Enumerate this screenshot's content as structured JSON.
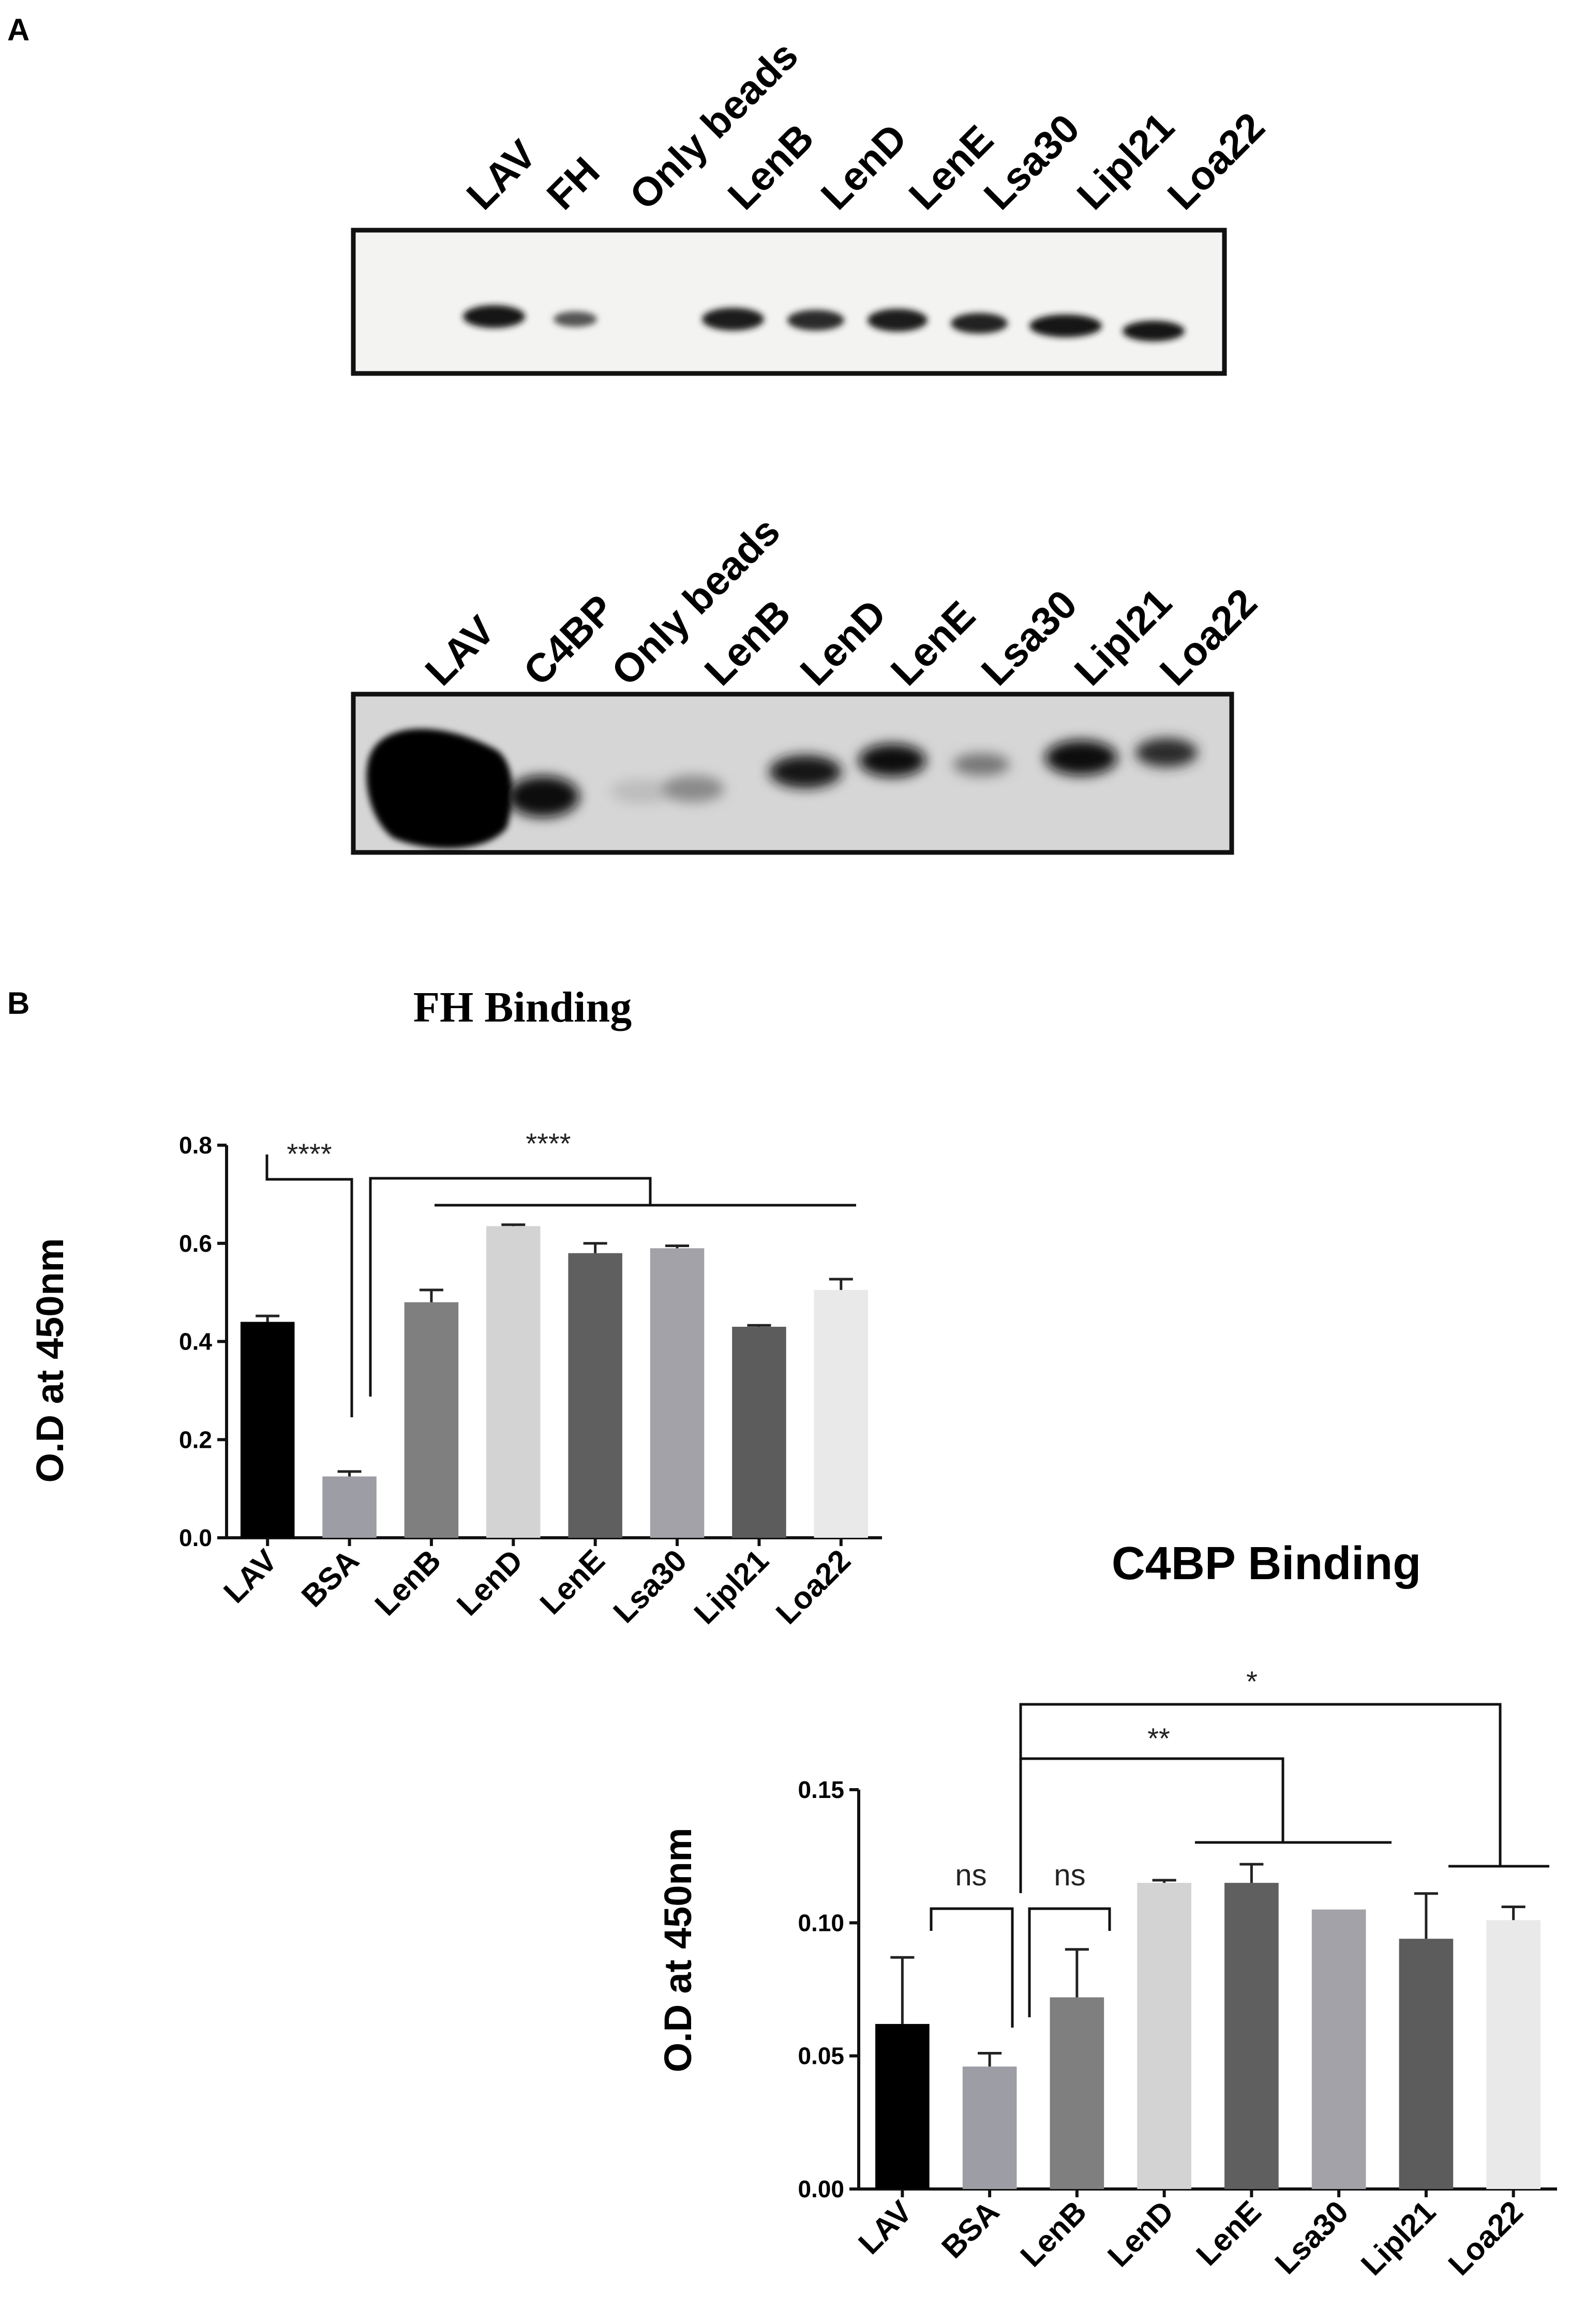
{
  "panel_a": {
    "letter": "A",
    "blot_top": {
      "lanes": [
        "LAV",
        "FH",
        "Only beads",
        "LenB",
        "LenD",
        "LenE",
        "Lsa30",
        "Lipl21",
        "Loa22"
      ]
    },
    "blot_bottom": {
      "lanes": [
        "LAV",
        "C4BP",
        "Only beads",
        "LenB",
        "LenD",
        "LenE",
        "Lsa30",
        "Lipl21",
        "Loa22"
      ]
    }
  },
  "panel_b": {
    "letter": "B"
  },
  "chart_data": [
    {
      "type": "bar",
      "title": "FH Binding",
      "ylabel": "O.D at 450nm",
      "xlabel": "",
      "categories": [
        "LAV",
        "BSA",
        "LenB",
        "LenD",
        "LenE",
        "Lsa30",
        "Lipl21",
        "Loa22"
      ],
      "values": [
        0.44,
        0.125,
        0.48,
        0.635,
        0.58,
        0.59,
        0.43,
        0.505
      ],
      "errors": [
        0.012,
        0.01,
        0.025,
        0.003,
        0.02,
        0.005,
        0.003,
        0.022
      ],
      "colors": [
        "#000000",
        "#9d9da5",
        "#7f7f7f",
        "#d3d3d3",
        "#5f5f5f",
        "#a2a2a8",
        "#5c5c5c",
        "#e9e9e9"
      ],
      "ylim": [
        0,
        0.8
      ],
      "yticks": [
        "0.0",
        "0.2",
        "0.4",
        "0.6",
        "0.8"
      ],
      "annotations": [
        "****",
        "****"
      ]
    },
    {
      "type": "bar",
      "title": "C4BP Binding",
      "ylabel": "O.D at 450nm",
      "xlabel": "",
      "categories": [
        "LAV",
        "BSA",
        "LenB",
        "LenD",
        "LenE",
        "Lsa30",
        "Lipl21",
        "Loa22"
      ],
      "values": [
        0.062,
        0.046,
        0.072,
        0.115,
        0.115,
        0.105,
        0.094,
        0.101
      ],
      "errors": [
        0.025,
        0.005,
        0.018,
        0.001,
        0.007,
        0.0,
        0.017,
        0.005
      ],
      "colors": [
        "#000000",
        "#9d9da5",
        "#7f7f7f",
        "#d3d3d3",
        "#5f5f5f",
        "#a2a2a8",
        "#5c5c5c",
        "#e9e9e9"
      ],
      "ylim": [
        0,
        0.15
      ],
      "yticks": [
        "0.00",
        "0.05",
        "0.10",
        "0.15"
      ],
      "annotations": [
        "ns",
        "ns",
        "**",
        "*"
      ]
    }
  ]
}
